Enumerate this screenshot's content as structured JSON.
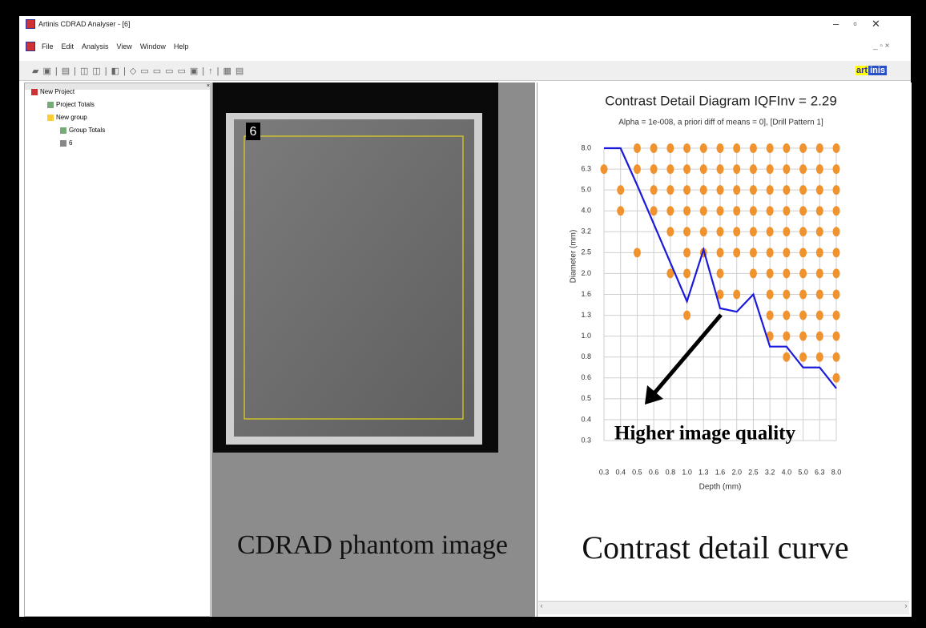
{
  "window": {
    "title": "Artinis CDRAD Analyser - [6]",
    "menu": [
      "File",
      "Edit",
      "Analysis",
      "View",
      "Window",
      "Help"
    ],
    "logo": [
      "art",
      "inis"
    ]
  },
  "tree": [
    "New Project",
    "Project Totals",
    "New group",
    "Group Totals",
    "6"
  ],
  "phantom": {
    "label": "6",
    "caption": "CDRAD phantom image"
  },
  "chart_data": {
    "type": "scatter",
    "title": "Contrast Detail Diagram IQFInv = 2.29",
    "subtitle": "Alpha = 1e-008, a priori diff of means = 0], [Drill Pattern 1]",
    "xlabel": "Depth (mm)",
    "ylabel": "Diameter (mm)",
    "xticks": [
      0.3,
      0.4,
      0.5,
      0.6,
      0.8,
      {
        "value": 1,
        "label": "1.0"
      },
      1.3,
      1.6,
      {
        "value": 2,
        "label": "2.0"
      },
      2.5,
      3.2,
      {
        "value": 4,
        "label": "4.0"
      },
      {
        "value": 5,
        "label": "5.0"
      },
      6.3,
      {
        "value": 8,
        "label": "8.0"
      }
    ],
    "yticks": [
      {
        "value": 8,
        "label": "8.0"
      },
      6.3,
      {
        "value": 5,
        "label": "5.0"
      },
      {
        "value": 4,
        "label": "4.0"
      },
      3.2,
      2.5,
      {
        "value": 2,
        "label": "2.0"
      },
      1.6,
      1.3,
      {
        "value": 1,
        "label": "1.0"
      },
      0.8,
      0.6,
      0.5,
      0.4,
      0.3
    ],
    "grid": true,
    "point_color": "#f0932e",
    "curve_color": "#1a1adc",
    "points": [
      {
        "y": 8,
        "x": [
          0.5,
          0.6,
          0.8,
          1,
          1.3,
          1.6,
          2,
          2.5,
          3.2,
          4,
          5,
          6.3,
          8
        ]
      },
      {
        "y": 6.3,
        "x": [
          0.3,
          0.5,
          0.6,
          0.8,
          1,
          1.3,
          1.6,
          2,
          2.5,
          3.2,
          4,
          5,
          6.3,
          8
        ]
      },
      {
        "y": 5,
        "x": [
          0.4,
          0.6,
          0.8,
          1,
          1.3,
          1.6,
          2,
          2.5,
          3.2,
          4,
          5,
          6.3,
          8
        ]
      },
      {
        "y": 4,
        "x": [
          0.4,
          0.6,
          0.8,
          1,
          1.3,
          1.6,
          2,
          2.5,
          3.2,
          4,
          5,
          6.3,
          8
        ]
      },
      {
        "y": 3.2,
        "x": [
          0.8,
          1,
          1.3,
          1.6,
          2,
          2.5,
          3.2,
          4,
          5,
          6.3,
          8
        ]
      },
      {
        "y": 2.5,
        "x": [
          0.5,
          1,
          1.3,
          1.6,
          2,
          2.5,
          3.2,
          4,
          5,
          6.3,
          8
        ]
      },
      {
        "y": 2,
        "x": [
          0.8,
          1,
          1.6,
          2.5,
          3.2,
          4,
          5,
          6.3,
          8
        ]
      },
      {
        "y": 1.6,
        "x": [
          1.6,
          2,
          3.2,
          4,
          5,
          6.3,
          8
        ]
      },
      {
        "y": 1.3,
        "x": [
          1,
          3.2,
          4,
          5,
          6.3,
          8
        ]
      },
      {
        "y": 1,
        "x": [
          3.2,
          4,
          5,
          6.3,
          8
        ]
      },
      {
        "y": 0.8,
        "x": [
          4,
          5,
          6.3,
          8
        ]
      },
      {
        "y": 0.6,
        "x": [
          8
        ]
      }
    ],
    "curve": {
      "x": [
        0.3,
        0.4,
        0.5,
        1,
        1.3,
        1.6,
        2,
        2.5,
        3.2,
        4,
        5,
        6.3,
        8
      ],
      "y": [
        8,
        8,
        5.3,
        1.5,
        2.6,
        1.4,
        1.35,
        1.6,
        0.9,
        0.9,
        0.7,
        0.7,
        0.55
      ]
    },
    "annotation": "Higher image quality",
    "caption": "Contrast detail curve"
  }
}
